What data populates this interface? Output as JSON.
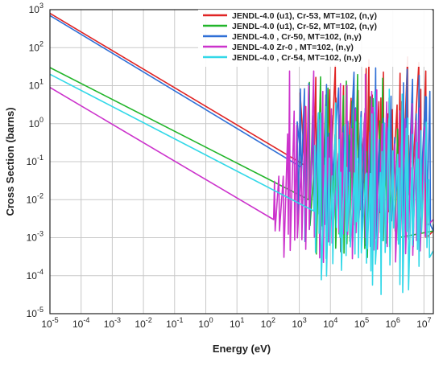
{
  "chart_data": {
    "type": "line",
    "title": "",
    "xlabel": "Energy (eV)",
    "ylabel": "Cross Section (barns)",
    "x_scale": "log",
    "y_scale": "log",
    "xlim": [
      1e-05,
      20000000.0
    ],
    "ylim": [
      1e-05,
      1000.0
    ],
    "x_ticks": [
      {
        "v": 1e-05,
        "base": "10",
        "exp": "-5"
      },
      {
        "v": 0.0001,
        "base": "10",
        "exp": "-4"
      },
      {
        "v": 0.001,
        "base": "10",
        "exp": "-3"
      },
      {
        "v": 0.01,
        "base": "10",
        "exp": "-2"
      },
      {
        "v": 0.1,
        "base": "10",
        "exp": "-1"
      },
      {
        "v": 1.0,
        "base": "10",
        "exp": "0"
      },
      {
        "v": 10.0,
        "base": "10",
        "exp": "1"
      },
      {
        "v": 100.0,
        "base": "10",
        "exp": "2"
      },
      {
        "v": 1000.0,
        "base": "10",
        "exp": "3"
      },
      {
        "v": 10000.0,
        "base": "10",
        "exp": "4"
      },
      {
        "v": 100000.0,
        "base": "10",
        "exp": "5"
      },
      {
        "v": 1000000.0,
        "base": "10",
        "exp": "6"
      },
      {
        "v": 10000000.0,
        "base": "10",
        "exp": "7"
      }
    ],
    "y_ticks": [
      {
        "v": 1000.0,
        "base": "10",
        "exp": "3"
      },
      {
        "v": 100.0,
        "base": "10",
        "exp": "2"
      },
      {
        "v": 10.0,
        "base": "10",
        "exp": "1"
      },
      {
        "v": 1.0,
        "base": "10",
        "exp": "0"
      },
      {
        "v": 0.1,
        "base": "10",
        "exp": "-1"
      },
      {
        "v": 0.01,
        "base": "10",
        "exp": "-2"
      },
      {
        "v": 0.001,
        "base": "10",
        "exp": "-3"
      },
      {
        "v": 0.0001,
        "base": "10",
        "exp": "-4"
      },
      {
        "v": 1e-05,
        "base": "10",
        "exp": "-5"
      }
    ],
    "grid": true,
    "legend_position": "top-right",
    "series": [
      {
        "name": "JENDL-4.0  (u1), Cr-53, MT=102, (n,γ)",
        "color": "#e02424",
        "points": [
          [
            1e-05,
            800
          ],
          [
            1500.0,
            0.08
          ]
        ],
        "resonances": {
          "start": 1000.0,
          "end": 12000000.0,
          "count": 35,
          "peak_max": 60,
          "valley_min": 0.002,
          "tail_end": 0.001,
          "seed": 3
        }
      },
      {
        "name": "JENDL-4.0  (u1), Cr-52, MT=102, (n,γ)",
        "color": "#22b52a",
        "points": [
          [
            1e-05,
            30
          ],
          [
            2000.0,
            0.01
          ]
        ],
        "resonances": {
          "start": 2000.0,
          "end": 1500000.0,
          "count": 30,
          "peak_max": 20,
          "valley_min": 0.0003,
          "tail_end": 0.001,
          "seed": 7
        }
      },
      {
        "name": "JENDL-4.0 , Cr-50, MT=102, (n,γ)",
        "color": "#2f6fd6",
        "points": [
          [
            1e-05,
            700
          ],
          [
            1200.0,
            0.07
          ]
        ],
        "resonances": {
          "start": 800.0,
          "end": 20000000.0,
          "count": 35,
          "peak_max": 30,
          "valley_min": 0.0005,
          "tail_end": 0.0015,
          "seed": 11
        }
      },
      {
        "name": "JENDL-4.0  Zr-0 , MT=102, (n,γ)",
        "color": "#cc33cc",
        "points": [
          [
            1e-05,
            9
          ],
          [
            150.0,
            0.003
          ]
        ],
        "resonances": {
          "start": 150.0,
          "end": 12000000.0,
          "count": 40,
          "peak_max": 30,
          "valley_min": 0.0002,
          "tail_end": 0.002,
          "seed": 19
        }
      },
      {
        "name": "JENDL-4.0 , Cr-54, MT=102, (n,γ)",
        "color": "#33d8e8",
        "points": [
          [
            1e-05,
            20
          ],
          [
            3000.0,
            0.005
          ]
        ],
        "resonances": {
          "start": 3000.0,
          "end": 15000000.0,
          "count": 40,
          "peak_max": 10,
          "valley_min": 3e-05,
          "tail_end": 0.0003,
          "seed": 23
        }
      }
    ]
  }
}
